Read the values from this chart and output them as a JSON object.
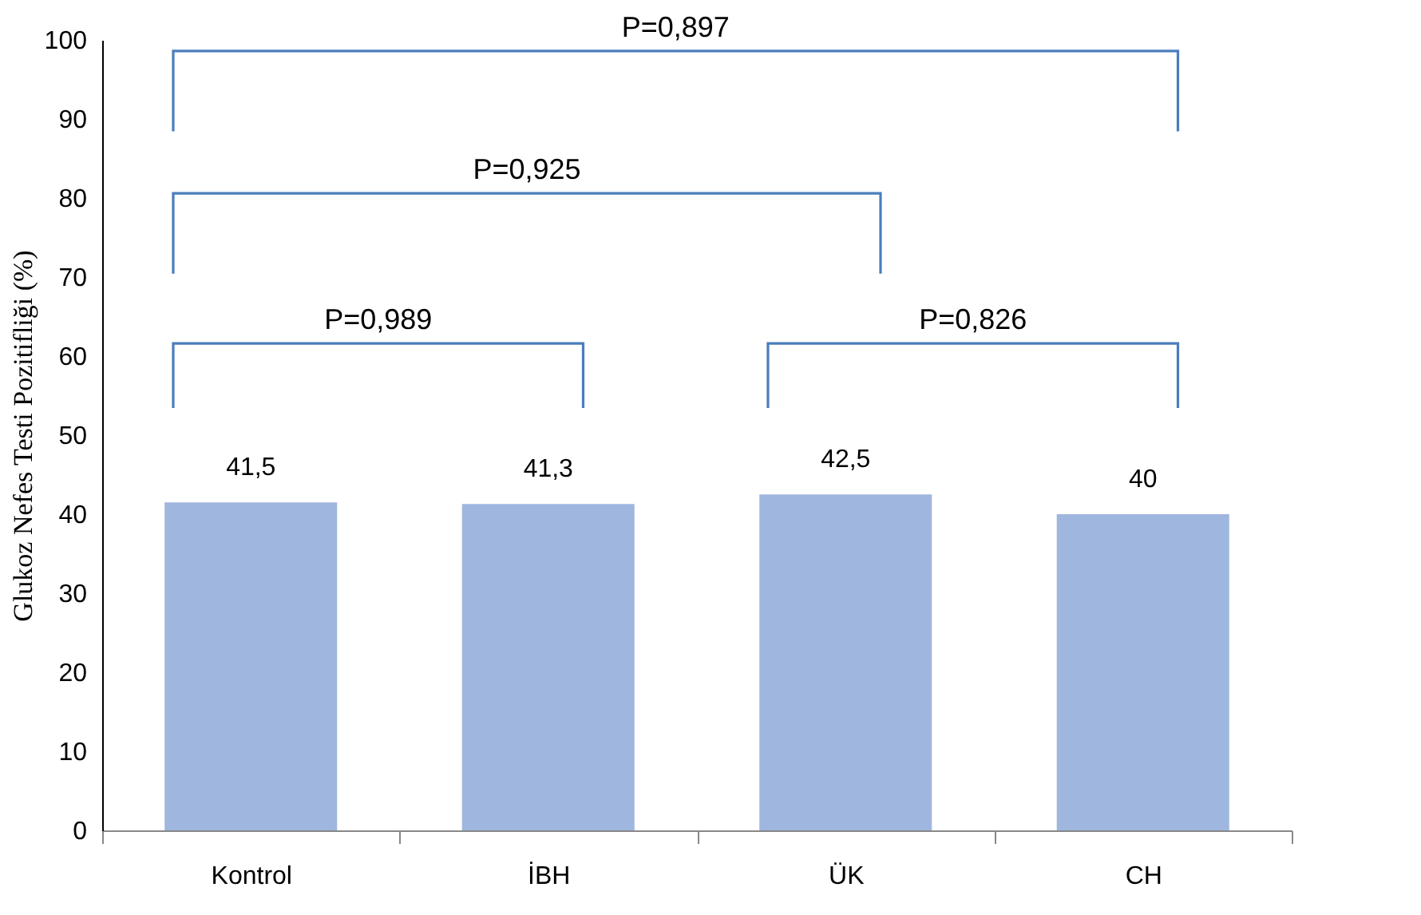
{
  "chart_data": {
    "type": "bar",
    "ylabel": "Glukoz Nefes Testi Pozitifliği (%)",
    "categories": [
      "Kontrol",
      "İBH",
      "ÜK",
      "CH"
    ],
    "values": [
      41.5,
      41.3,
      42.5,
      40
    ],
    "value_labels": [
      "41,5",
      "41,3",
      "42,5",
      "40"
    ],
    "color": "#9fb6de",
    "ylim": [
      0,
      100
    ],
    "yticks": [
      0,
      10,
      20,
      30,
      40,
      50,
      60,
      70,
      80,
      90,
      100
    ],
    "grid": false,
    "annotations": [
      "P=0,897",
      "P=0,925",
      "P=0,989",
      "P=0,826"
    ]
  }
}
